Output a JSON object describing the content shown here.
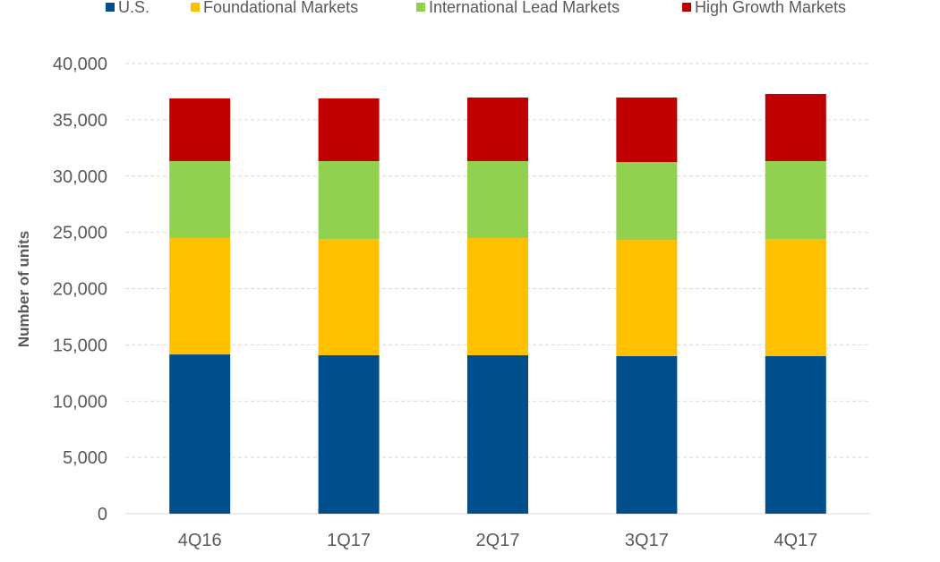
{
  "chart_data": {
    "type": "bar",
    "stacked": true,
    "categories": [
      "4Q16",
      "1Q17",
      "2Q17",
      "3Q17",
      "4Q17"
    ],
    "series": [
      {
        "name": "U.S.",
        "color": "#004f8c",
        "values": [
          14150,
          14080,
          14080,
          14000,
          14000
        ]
      },
      {
        "name": "Foundational Markets",
        "color": "#ffc000",
        "values": [
          10340,
          10330,
          10410,
          10330,
          10410
        ]
      },
      {
        "name": "International Lead Markets",
        "color": "#92d050",
        "values": [
          6840,
          6920,
          6840,
          6920,
          6920
        ]
      },
      {
        "name": "High Growth Markets",
        "color": "#c00000",
        "values": [
          5570,
          5570,
          5650,
          5730,
          5970
        ]
      }
    ],
    "title": "",
    "xlabel": "",
    "ylabel": "Number of units",
    "ylim": [
      0,
      40000
    ],
    "yticks": [
      "0",
      "5,000",
      "10,000",
      "15,000",
      "20,000",
      "25,000",
      "30,000",
      "35,000",
      "40,000"
    ],
    "grid": "horizontal dashed",
    "legend": "top"
  }
}
